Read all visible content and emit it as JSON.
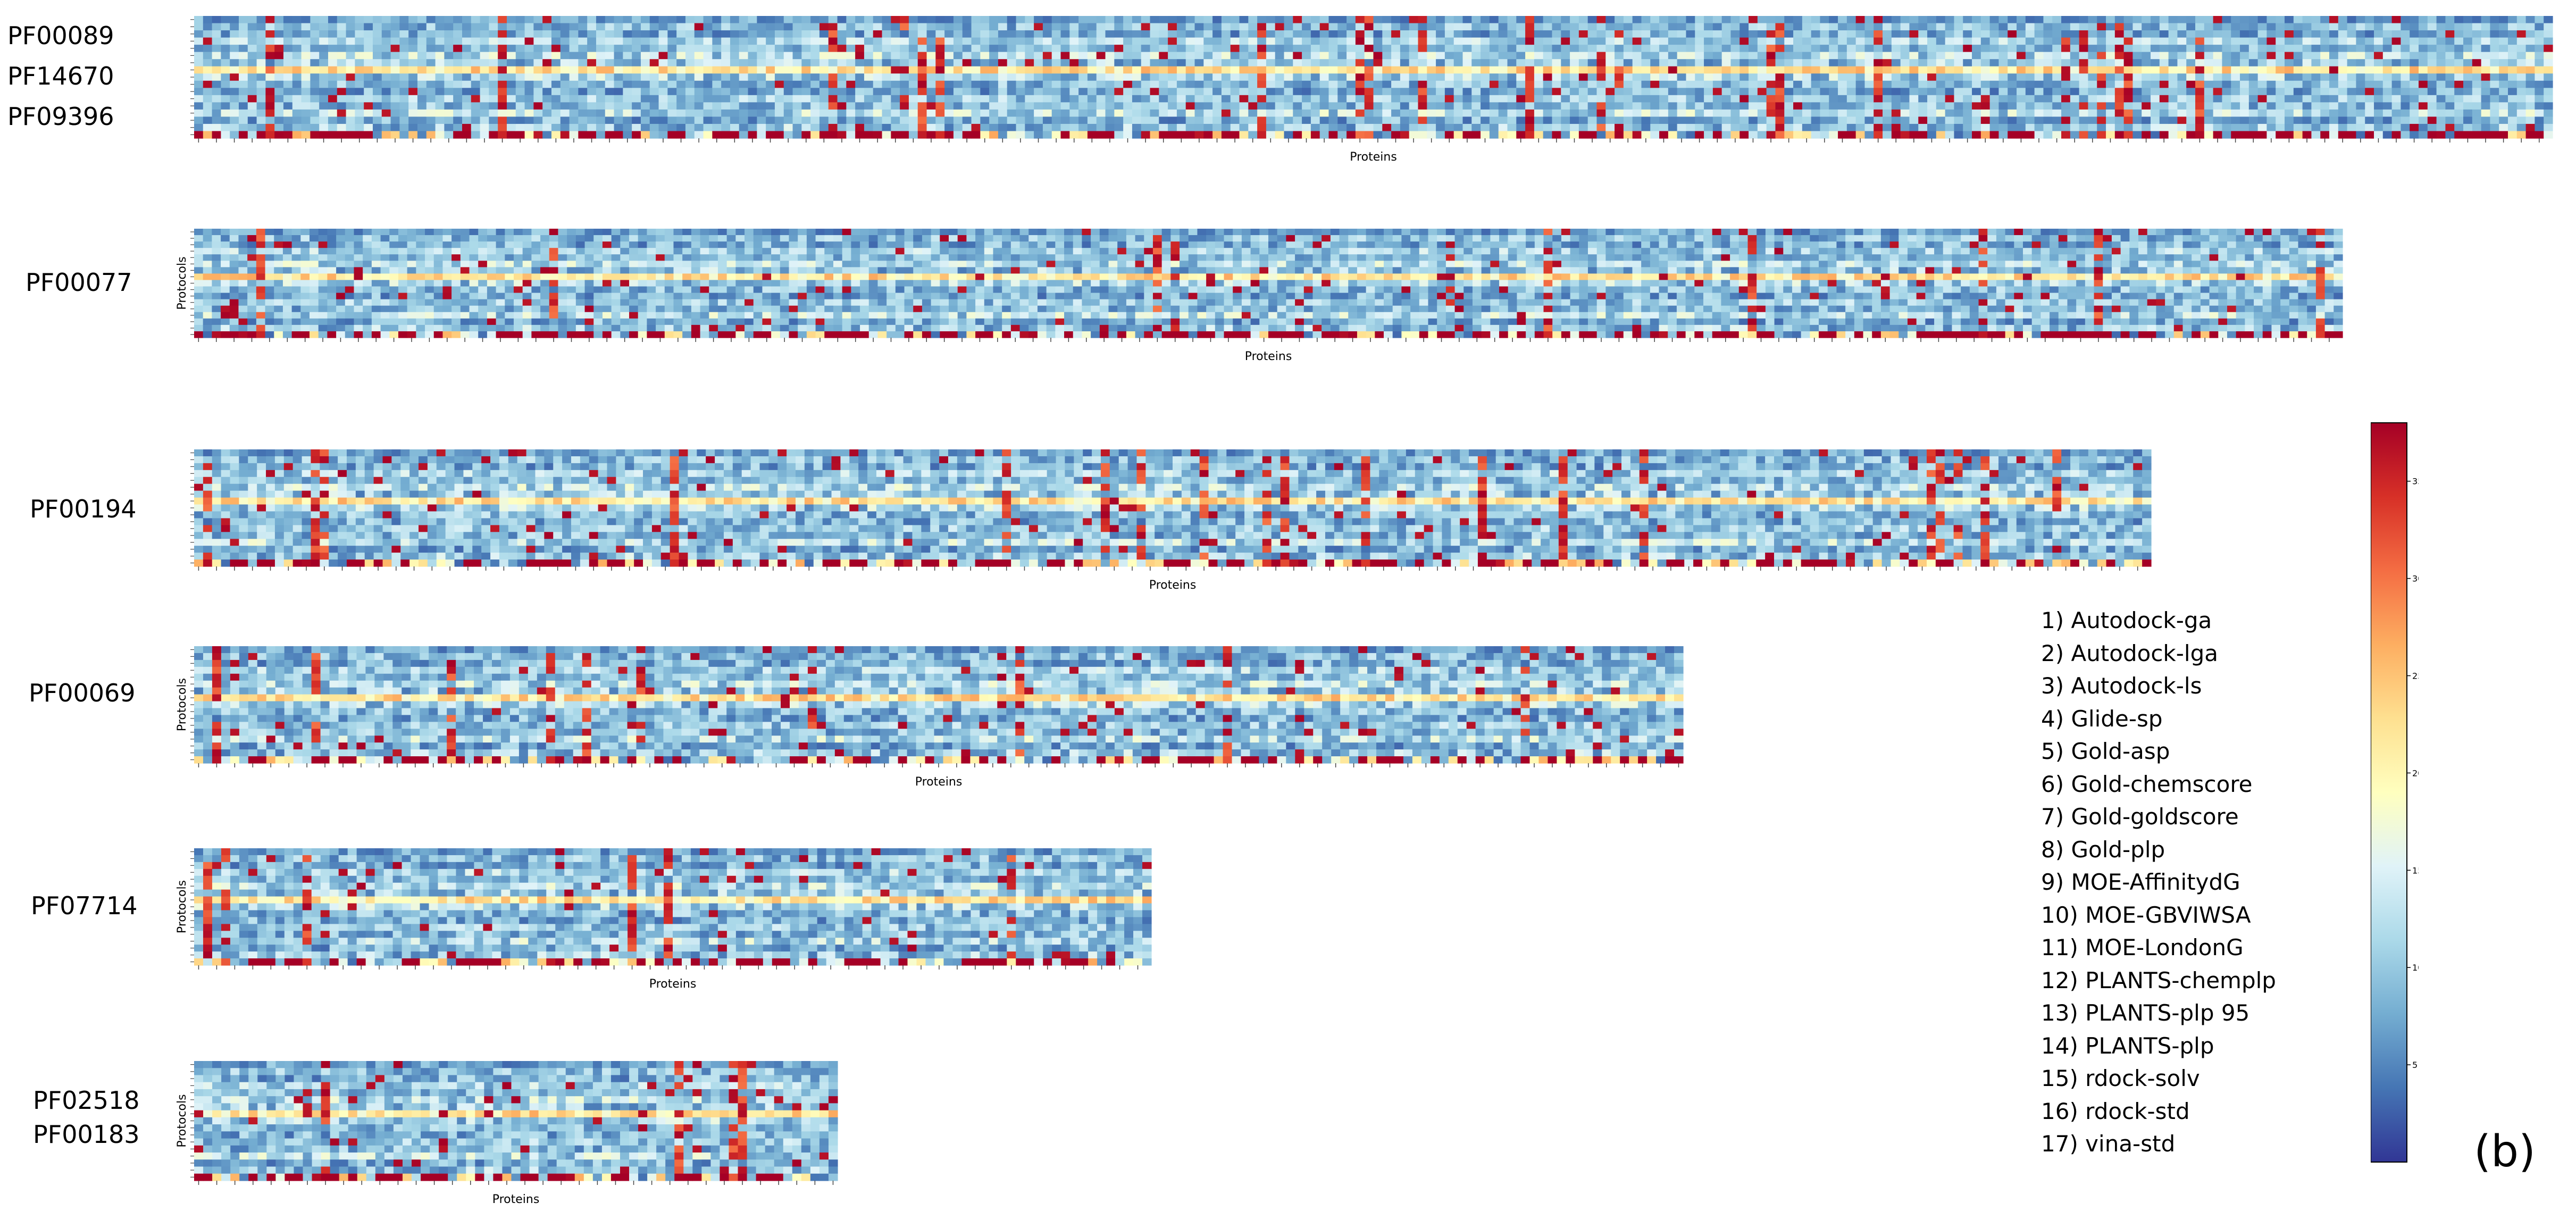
{
  "panel_tag": "(b)",
  "legend": {
    "items": [
      "1) Autodock-ga",
      "2) Autodock-lga",
      "3) Autodock-ls",
      "4) Glide-sp",
      "5) Gold-asp",
      "6) Gold-chemscore",
      "7) Gold-goldscore",
      "8) Gold-plp",
      "9) MOE-AffinitydG",
      "10) MOE-GBVIWSA",
      "11) MOE-LondonG",
      "12) PLANTS-chemplp",
      "13) PLANTS-plp 95",
      "14) PLANTS-plp",
      "15) rdock-solv",
      "16) rdock-std",
      "17) vina-std"
    ]
  },
  "colorbar": {
    "range": [
      0,
      38
    ],
    "ticks": [
      5,
      10,
      15,
      20,
      25,
      30,
      35
    ],
    "colormap": [
      "#313695",
      "#4575b4",
      "#74add1",
      "#abd9e9",
      "#e0f3f8",
      "#ffffbf",
      "#fee090",
      "#fdae61",
      "#f46d43",
      "#d73027",
      "#a50026"
    ]
  },
  "chart_data": [
    {
      "type": "heatmap",
      "families": [
        "PF00089",
        "PF14670",
        "PF09396"
      ],
      "xlabel": "Proteins",
      "ylabel": "",
      "rows": 17,
      "columns": 264
    },
    {
      "type": "heatmap",
      "families": [
        "PF00077"
      ],
      "xlabel": "Proteins",
      "ylabel": "Protocols",
      "rows": 17,
      "columns": 242
    },
    {
      "type": "heatmap",
      "families": [
        "PF00194"
      ],
      "xlabel": "Proteins",
      "ylabel": "",
      "rows": 17,
      "columns": 218
    },
    {
      "type": "heatmap",
      "families": [
        "PF00069"
      ],
      "xlabel": "Proteins",
      "ylabel": "Protocols",
      "rows": 17,
      "columns": 165
    },
    {
      "type": "heatmap",
      "families": [
        "PF07714"
      ],
      "xlabel": "Proteins",
      "ylabel": "Protocols",
      "rows": 17,
      "columns": 106
    },
    {
      "type": "heatmap",
      "families": [
        "PF02518",
        "PF00183"
      ],
      "xlabel": "Proteins",
      "ylabel": "Protocols",
      "rows": 17,
      "columns": 71
    }
  ]
}
